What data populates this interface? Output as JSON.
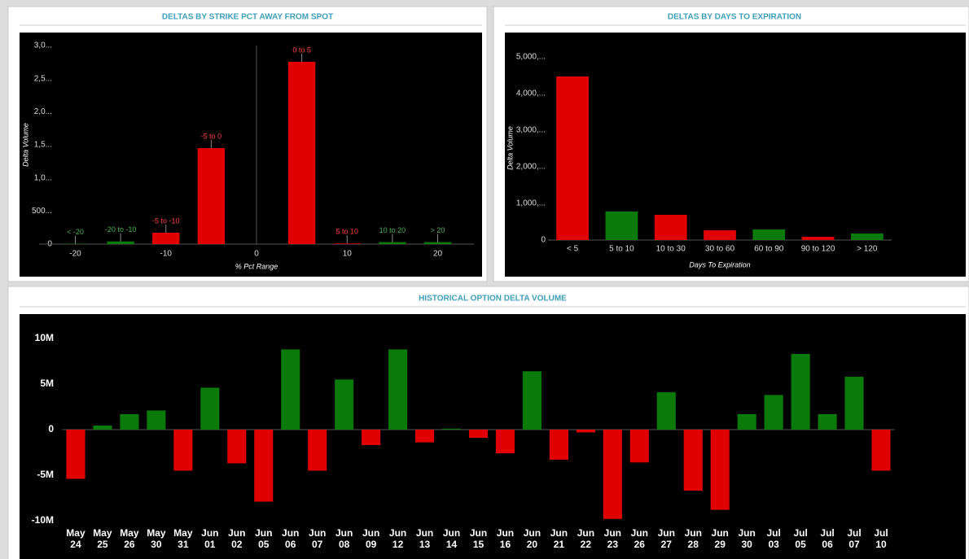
{
  "chart_data": [
    {
      "type": "bar",
      "title": "DELTAS BY STRIKE PCT AWAY FROM SPOT",
      "x_label": "% Pct Range",
      "y_label": "Delta Volume",
      "x": [
        -20,
        -15,
        -10,
        -5,
        5,
        10,
        15,
        20
      ],
      "categories": [
        "< -20",
        "-20 to -10",
        "-5 to -10",
        "-5 to 0",
        "0 to 5",
        "5 to 10",
        "10 to 20",
        "> 20"
      ],
      "values": [
        5,
        40,
        172,
        1450,
        2755,
        10,
        30,
        30
      ],
      "colors": [
        "#0a7a0a",
        "#0a7a0a",
        "#e00000",
        "#e00000",
        "#e00000",
        "#e00000",
        "#0a7a0a",
        "#0a7a0a"
      ],
      "label_colors": [
        "#4caf50",
        "#4caf50",
        "#ff4040",
        "#ff4040",
        "#ff4040",
        "#ff4040",
        "#4caf50",
        "#4caf50"
      ],
      "xlim": [
        -24,
        24
      ],
      "xticks": [
        -20,
        -10,
        0,
        10,
        20
      ],
      "ylim": [
        0,
        3000
      ],
      "yticks": [
        0,
        {
          "value": 500,
          "label": "500..."
        },
        {
          "value": 1000,
          "label": "1,0..."
        },
        {
          "value": 1500,
          "label": "1,5..."
        },
        {
          "value": 2000,
          "label": "2,0..."
        },
        {
          "value": 2500,
          "label": "2,5..."
        },
        {
          "value": 3000,
          "label": "3,0..."
        }
      ]
    },
    {
      "type": "bar",
      "title": "DELTAS BY DAYS TO EXPIRATION",
      "x_label": "Days To Expiration",
      "y_label": "Delta Volume",
      "categories": [
        "< 5",
        "5 to 10",
        "10 to 30",
        "30 to 60",
        "60 to 90",
        "90 to 120",
        "> 120"
      ],
      "values": [
        4467,
        778,
        689,
        267,
        289,
        89,
        178
      ],
      "colors": [
        "#e00000",
        "#0a7a0a",
        "#e00000",
        "#e00000",
        "#0a7a0a",
        "#e00000",
        "#0a7a0a"
      ],
      "ylim": [
        0,
        5000
      ],
      "yticks": [
        0,
        {
          "value": 1000,
          "label": "1,000,..."
        },
        {
          "value": 2000,
          "label": "2,000,..."
        },
        {
          "value": 3000,
          "label": "3,000,..."
        },
        {
          "value": 4000,
          "label": "4,000,..."
        },
        {
          "value": 5000,
          "label": "5,000,..."
        }
      ]
    },
    {
      "type": "bar",
      "title": "HISTORICAL OPTION DELTA VOLUME",
      "categories": [
        "May 24",
        "May 25",
        "May 26",
        "May 30",
        "May 31",
        "Jun 01",
        "Jun 02",
        "Jun 05",
        "Jun 06",
        "Jun 07",
        "Jun 08",
        "Jun 09",
        "Jun 12",
        "Jun 13",
        "Jun 14",
        "Jun 15",
        "Jun 16",
        "Jun 20",
        "Jun 21",
        "Jun 22",
        "Jun 23",
        "Jun 26",
        "Jun 27",
        "Jun 28",
        "Jun 29",
        "Jun 30",
        "Jul 03",
        "Jul 05",
        "Jul 06",
        "Jul 07",
        "Jul 10"
      ],
      "values": [
        -5400000,
        450000,
        1700000,
        2100000,
        -4500000,
        4600000,
        -3700000,
        -7900000,
        8800000,
        -4500000,
        5500000,
        -1700000,
        8800000,
        -1400000,
        100000,
        -900000,
        -2600000,
        6400000,
        -3300000,
        -300000,
        -9800000,
        -3600000,
        4100000,
        -6700000,
        -8800000,
        1700000,
        3800000,
        8300000,
        1700000,
        5800000,
        -4500000
      ],
      "positive_color": "#0a7a0a",
      "negative_color": "#e00000",
      "ylim": [
        -10000000,
        10000000
      ],
      "yticks": [
        {
          "value": 10000000,
          "label": "10M"
        },
        {
          "value": 5000000,
          "label": "5M"
        },
        0,
        {
          "value": -5000000,
          "label": "-5M"
        },
        {
          "value": -10000000,
          "label": "-10M"
        }
      ]
    }
  ]
}
